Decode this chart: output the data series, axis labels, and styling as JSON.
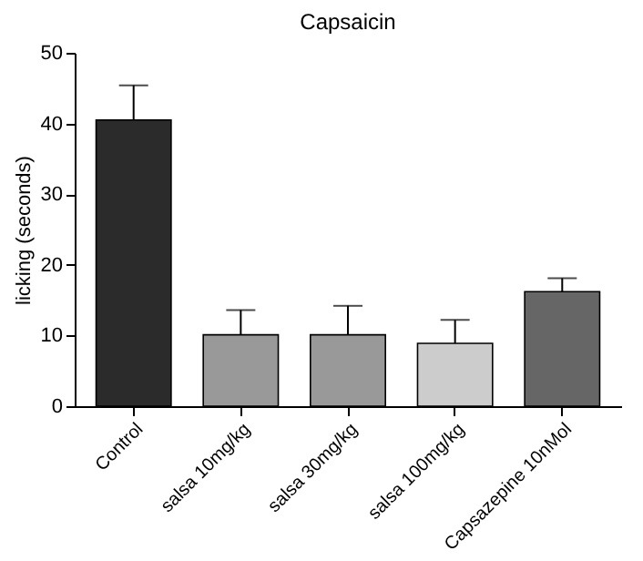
{
  "chart_data": {
    "type": "bar",
    "title": "Capsaicin",
    "ylabel": "licking (seconds)",
    "categories": [
      "Control",
      "salsa 10mg/kg",
      "salsa 30mg/kg",
      "salsa 100mg/kg",
      "Capsazepine 10nMol"
    ],
    "values": [
      40.5,
      10.1,
      10.1,
      8.9,
      16.2
    ],
    "errors": [
      [
        40.5,
        45.4
      ],
      [
        10.1,
        13.6
      ],
      [
        10.1,
        14.2
      ],
      [
        8.9,
        12.2
      ],
      [
        16.2,
        18.1
      ]
    ],
    "colors": [
      "#2b2b2b",
      "#999999",
      "#999999",
      "#cccccc",
      "#666666"
    ],
    "ylim": [
      0,
      50
    ],
    "yticks": [
      0,
      10,
      20,
      30,
      40,
      50
    ],
    "grid": false,
    "legend": false
  }
}
